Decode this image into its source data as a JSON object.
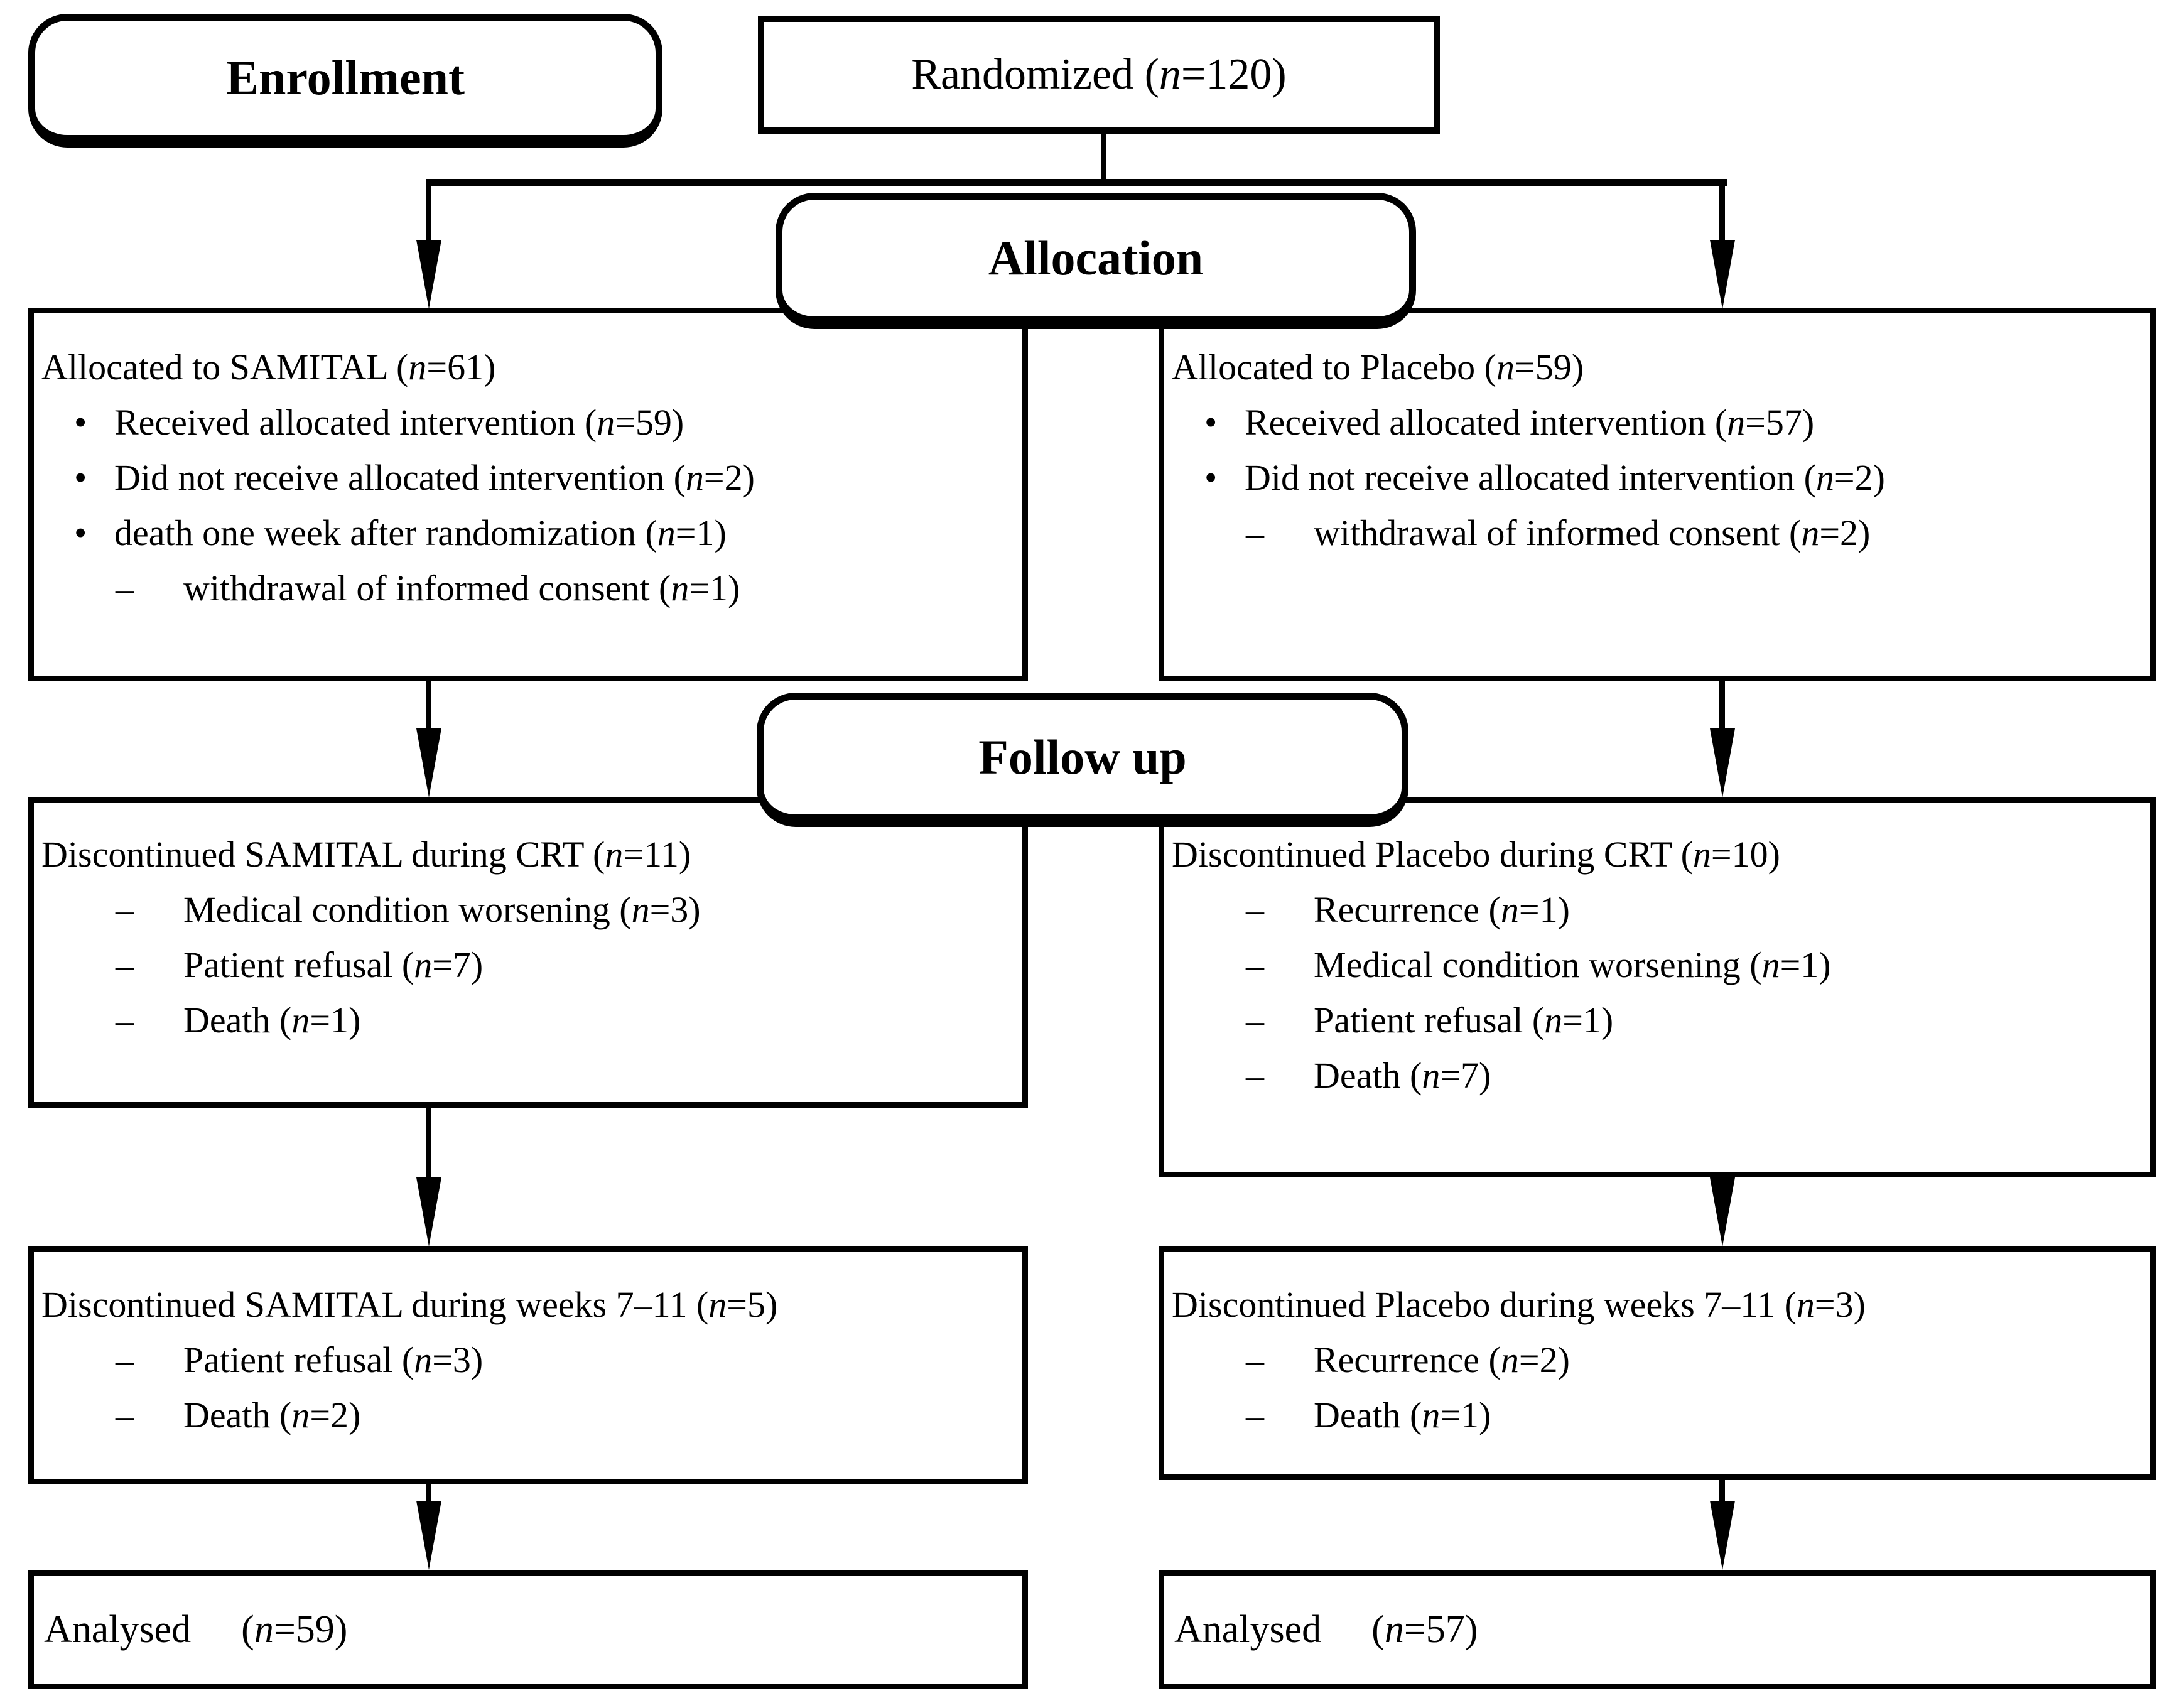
{
  "colors": {
    "ink": "#000000",
    "paper": "#ffffff"
  },
  "glyphs": {
    "bullet": "•",
    "dash": "–"
  },
  "stages": {
    "enrollment": "Enrollment",
    "allocation": "Allocation",
    "follow_up": "Follow up"
  },
  "randomized": {
    "text": "Randomized (n=120)"
  },
  "boxes": {
    "alloc_left": {
      "title": "Allocated to SAMITAL (n=61)",
      "items": [
        {
          "marker": "bullet",
          "text": "Received allocated intervention (n=59)"
        },
        {
          "marker": "bullet",
          "text": "Did not receive allocated intervention (n=2)"
        },
        {
          "marker": "bullet",
          "text": "death one week after randomization (n=1)"
        },
        {
          "marker": "dash",
          "text": "withdrawal of informed consent (n=1)"
        }
      ]
    },
    "alloc_right": {
      "title": "Allocated to Placebo (n=59)",
      "items": [
        {
          "marker": "bullet",
          "text": "Received allocated intervention (n=57)"
        },
        {
          "marker": "bullet",
          "text": "Did not receive allocated intervention (n=2)"
        },
        {
          "marker": "dash",
          "text": "withdrawal of informed consent (n=2)"
        }
      ]
    },
    "followup_left": {
      "title": "Discontinued SAMITAL during CRT (n=11)",
      "items": [
        {
          "marker": "dash",
          "text": "Medical condition worsening (n=3)"
        },
        {
          "marker": "dash",
          "text": "Patient refusal (n=7)"
        },
        {
          "marker": "dash",
          "text": "Death (n=1)"
        }
      ]
    },
    "followup_right": {
      "title": "Discontinued Placebo during CRT (n=10)",
      "items": [
        {
          "marker": "dash",
          "text": "Recurrence (n=1)"
        },
        {
          "marker": "dash",
          "text": "Medical condition worsening (n=1)"
        },
        {
          "marker": "dash",
          "text": "Patient refusal (n=1)"
        },
        {
          "marker": "dash",
          "text": "Death (n=7)"
        }
      ]
    },
    "weeks_left": {
      "title": "Discontinued SAMITAL during weeks 7–11 (n=5)",
      "items": [
        {
          "marker": "dash",
          "text": "Patient refusal (n=3)"
        },
        {
          "marker": "dash",
          "text": "Death (n=2)"
        }
      ]
    },
    "weeks_right": {
      "title": "Discontinued Placebo during weeks 7–11 (n=3)",
      "items": [
        {
          "marker": "dash",
          "text": "Recurrence (n=2)"
        },
        {
          "marker": "dash",
          "text": "Death (n=1)"
        }
      ]
    },
    "analysed_left": {
      "label": "Analysed",
      "value": "(n=59)"
    },
    "analysed_right": {
      "label": "Analysed",
      "value": "(n=57)"
    }
  }
}
